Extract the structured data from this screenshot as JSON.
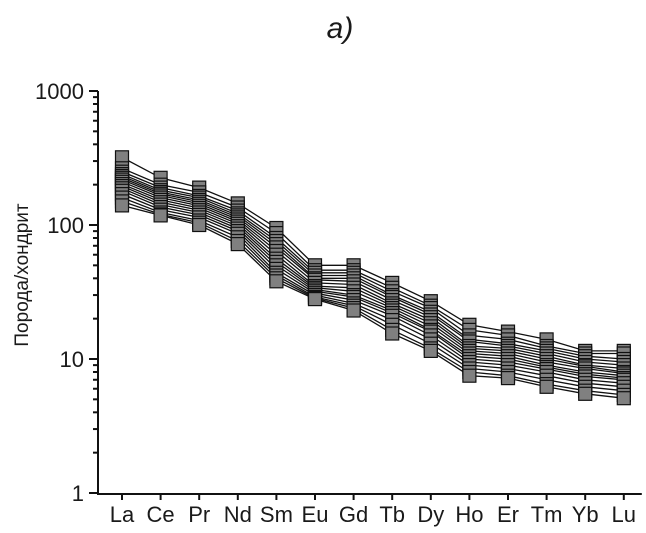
{
  "panel_label": "a)",
  "chart_data": {
    "type": "line",
    "y_scale": "log",
    "ylabel": "Порода/хондрит",
    "ylim": [
      1,
      1000
    ],
    "y_ticks": [
      1,
      10,
      100,
      1000
    ],
    "y_tick_labels": [
      "1",
      "10",
      "100",
      "1000"
    ],
    "categories": [
      "La",
      "Ce",
      "Pr",
      "Nd",
      "Sm",
      "Eu",
      "Gd",
      "Tb",
      "Dy",
      "Ho",
      "Er",
      "Tm",
      "Yb",
      "Lu"
    ],
    "marker": "square",
    "colors": {
      "marker_fill": "#808080",
      "line": "#111111"
    },
    "series": [
      {
        "values": [
          320,
          225,
          190,
          145,
          95,
          50,
          50,
          37,
          27,
          18,
          16,
          14,
          11.5,
          11.5
        ]
      },
      {
        "values": [
          265,
          200,
          175,
          135,
          87,
          46,
          46,
          34,
          25,
          16.5,
          15,
          12.5,
          11,
          11
        ]
      },
      {
        "values": [
          250,
          190,
          165,
          128,
          80,
          44,
          44,
          32,
          24,
          15,
          14,
          12,
          10.5,
          10
        ]
      },
      {
        "values": [
          240,
          182,
          160,
          122,
          76,
          42,
          42,
          30,
          22.5,
          14,
          13,
          11.5,
          10,
          9.5
        ]
      },
      {
        "values": [
          232,
          176,
          154,
          118,
          72,
          40,
          40,
          29,
          21.5,
          13.5,
          12.5,
          11,
          9.5,
          9
        ]
      },
      {
        "values": [
          225,
          171,
          149,
          114,
          68,
          39,
          38,
          27.5,
          20.5,
          12.5,
          12,
          10.5,
          9,
          8.5
        ]
      },
      {
        "values": [
          218,
          166,
          144,
          110,
          64,
          37,
          36,
          26,
          19.5,
          12,
          11.5,
          10,
          8.8,
          8
        ]
      },
      {
        "values": [
          210,
          160,
          139,
          106,
          60,
          35,
          34,
          25,
          18.5,
          11.5,
          11,
          9.5,
          8.5,
          7.8
        ]
      },
      {
        "values": [
          202,
          154,
          134,
          102,
          56,
          34,
          32,
          24,
          17.5,
          11,
          10.5,
          9,
          8,
          7.5
        ]
      },
      {
        "values": [
          195,
          148,
          129,
          98,
          53,
          33,
          30,
          23,
          16.5,
          10.5,
          10,
          8.7,
          7.7,
          7.2
        ]
      },
      {
        "values": [
          188,
          142,
          124,
          94,
          50,
          32,
          29,
          22,
          16,
          10,
          9.5,
          8.4,
          7.4,
          7
        ]
      },
      {
        "values": [
          180,
          136,
          119,
          90,
          47,
          31,
          27.5,
          21,
          15,
          9.5,
          9,
          8,
          7,
          6.6
        ]
      },
      {
        "values": [
          170,
          130,
          114,
          86,
          44,
          30,
          26,
          19.5,
          14,
          9,
          8.5,
          7.5,
          6.6,
          6.2
        ]
      },
      {
        "values": [
          160,
          124,
          108,
          81,
          42,
          29,
          25,
          18,
          13,
          8.5,
          8,
          7,
          6.2,
          5.8
        ]
      },
      {
        "values": [
          150,
          120,
          104,
          76,
          40,
          28.5,
          24,
          16.5,
          12,
          8,
          7.5,
          6.5,
          5.8,
          5.4
        ]
      },
      {
        "values": [
          140,
          118,
          100,
          72,
          38,
          28,
          23,
          15.5,
          11.5,
          7.5,
          7.2,
          6.2,
          5.5,
          5.1
        ]
      }
    ]
  }
}
